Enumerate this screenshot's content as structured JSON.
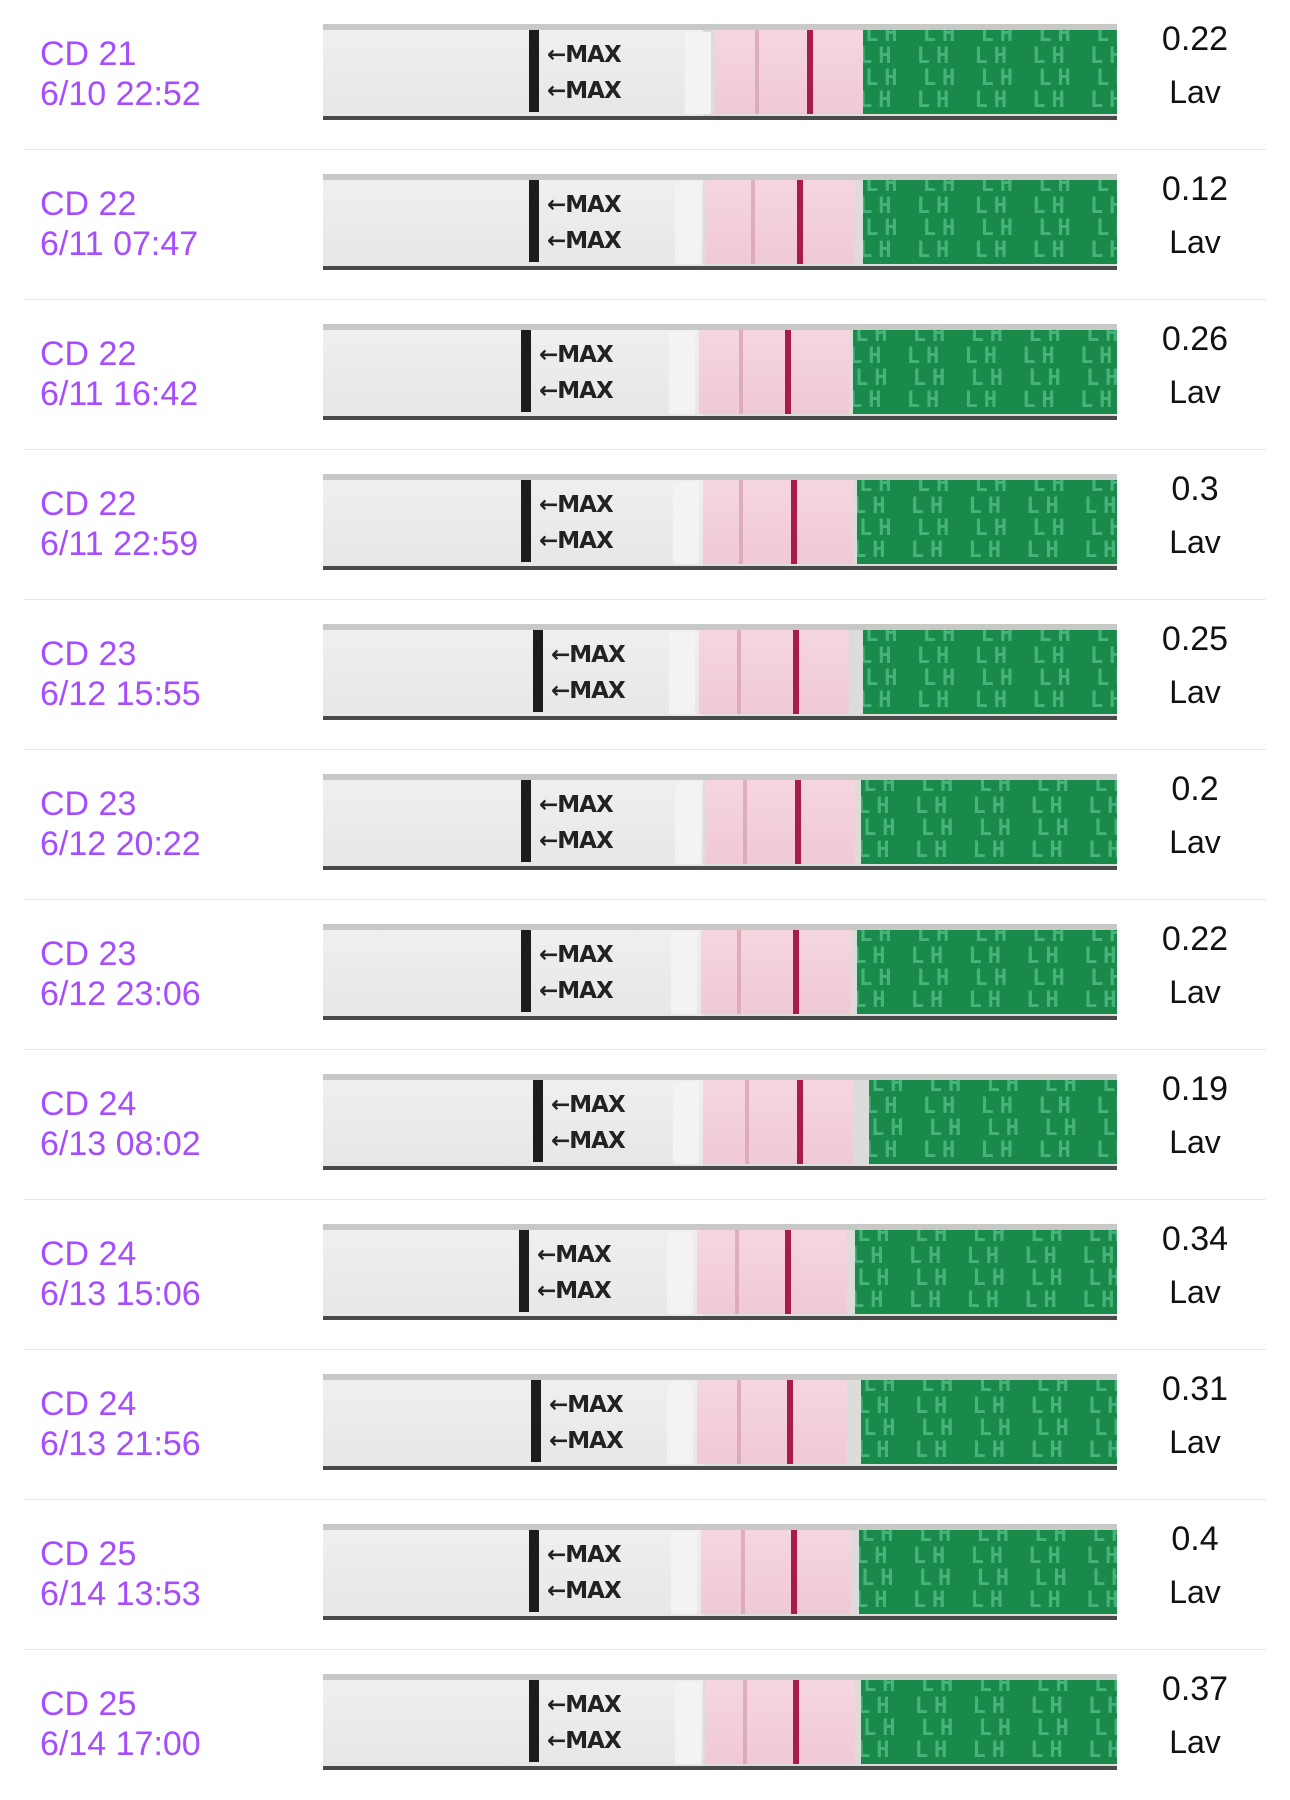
{
  "entries": [
    {
      "cycle_day": "CD 21",
      "datetime": "6/10 22:52",
      "value": "0.22",
      "unit": "Lav",
      "max_label": "MAX",
      "lh_label": "LH"
    },
    {
      "cycle_day": "CD 22",
      "datetime": "6/11 07:47",
      "value": "0.12",
      "unit": "Lav",
      "max_label": "MAX",
      "lh_label": "LH"
    },
    {
      "cycle_day": "CD 22",
      "datetime": "6/11 16:42",
      "value": "0.26",
      "unit": "Lav",
      "max_label": "MAX",
      "lh_label": "LH"
    },
    {
      "cycle_day": "CD 22",
      "datetime": "6/11 22:59",
      "value": "0.3",
      "unit": "Lav",
      "max_label": "MAX",
      "lh_label": "LH"
    },
    {
      "cycle_day": "CD 23",
      "datetime": "6/12 15:55",
      "value": "0.25",
      "unit": "Lav",
      "max_label": "MAX",
      "lh_label": "LH"
    },
    {
      "cycle_day": "CD 23",
      "datetime": "6/12 20:22",
      "value": "0.2",
      "unit": "Lav",
      "max_label": "MAX",
      "lh_label": "LH"
    },
    {
      "cycle_day": "CD 23",
      "datetime": "6/12 23:06",
      "value": "0.22",
      "unit": "Lav",
      "max_label": "MAX",
      "lh_label": "LH"
    },
    {
      "cycle_day": "CD 24",
      "datetime": "6/13 08:02",
      "value": "0.19",
      "unit": "Lav",
      "max_label": "MAX",
      "lh_label": "LH"
    },
    {
      "cycle_day": "CD 24",
      "datetime": "6/13 15:06",
      "value": "0.34",
      "unit": "Lav",
      "max_label": "MAX",
      "lh_label": "LH"
    },
    {
      "cycle_day": "CD 24",
      "datetime": "6/13 21:56",
      "value": "0.31",
      "unit": "Lav",
      "max_label": "MAX",
      "lh_label": "LH"
    },
    {
      "cycle_day": "CD 25",
      "datetime": "6/14 13:53",
      "value": "0.4",
      "unit": "Lav",
      "max_label": "MAX",
      "lh_label": "LH"
    },
    {
      "cycle_day": "CD 25",
      "datetime": "6/14 17:00",
      "value": "0.37",
      "unit": "Lav",
      "max_label": "MAX",
      "lh_label": "LH"
    }
  ],
  "colors": {
    "date_text": "#a64dff",
    "strip_green": "#1a8a4a",
    "test_window": "#f0c9d4",
    "control_line": "#a81c4a"
  }
}
